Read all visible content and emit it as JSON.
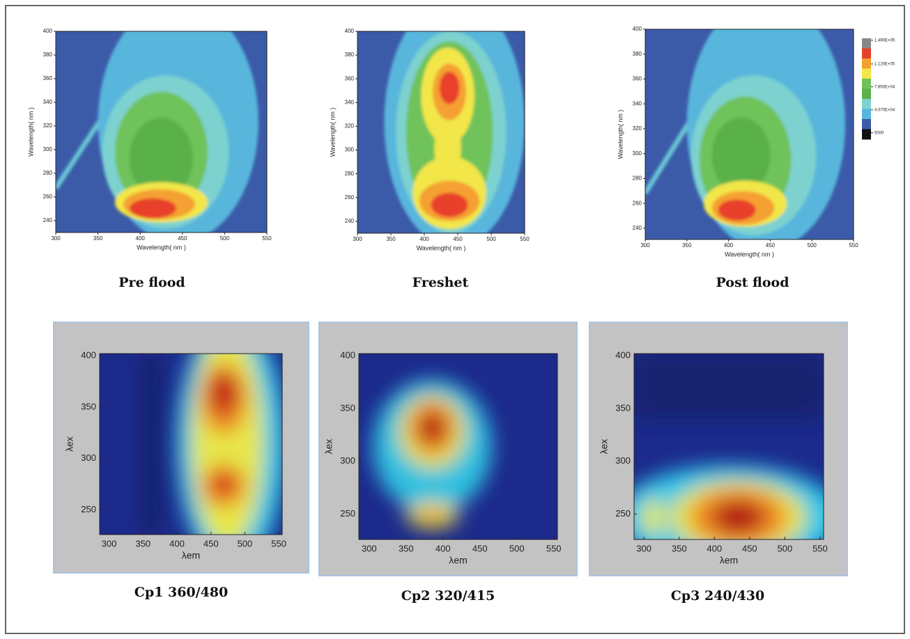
{
  "chart_data": [
    {
      "type": "contour",
      "title": "Pre flood",
      "x_label": "Wavelength( nm )",
      "y_label": "Wavelength( nm )",
      "xlim": [
        300,
        550
      ],
      "ylim": [
        230,
        400
      ],
      "xticks": [
        300,
        350,
        400,
        450,
        500,
        550
      ],
      "yticks": [
        240,
        260,
        280,
        300,
        320,
        340,
        360,
        380,
        400
      ]
    },
    {
      "type": "contour",
      "title": "Freshet",
      "x_label": "Wavelength( nm )",
      "y_label": "Wavelength( nm )",
      "xlim": [
        300,
        550
      ],
      "ylim": [
        230,
        400
      ],
      "xticks": [
        300,
        350,
        400,
        450,
        500,
        550
      ],
      "yticks": [
        240,
        260,
        280,
        300,
        320,
        340,
        360,
        380,
        400
      ]
    },
    {
      "type": "contour",
      "title": "Post flood",
      "x_label": "Wavelength( nm )",
      "y_label": "Wavelength( nm )",
      "xlim": [
        300,
        550
      ],
      "ylim": [
        231,
        400
      ],
      "xticks": [
        300,
        350,
        400,
        450,
        500,
        550
      ],
      "yticks": [
        240,
        260,
        280,
        300,
        320,
        340,
        360,
        380,
        400
      ],
      "colorbar": {
        "clim": [
          -5000,
          152000
        ],
        "ticks": [
          {
            "value": 149000,
            "label": "1.490E+05"
          },
          {
            "value": 112000,
            "label": "1.120E+05"
          },
          {
            "value": 76500,
            "label": "7.650E+04"
          },
          {
            "value": 40700,
            "label": "4.070E+04"
          },
          5000
        ]
      }
    },
    {
      "type": "heatmap",
      "title": "Cp1 360/480",
      "x_label": "λem",
      "y_label": "λex",
      "xlim": [
        286,
        555
      ],
      "ylim": [
        226,
        402
      ],
      "xticks": [
        300,
        350,
        400,
        450,
        500,
        550
      ],
      "yticks": [
        250,
        300,
        350,
        400
      ]
    },
    {
      "type": "heatmap",
      "title": "Cp2 320/415",
      "x_label": "λem",
      "y_label": "λex",
      "xlim": [
        286,
        555
      ],
      "ylim": [
        226,
        402
      ],
      "xticks": [
        300,
        350,
        400,
        450,
        500,
        550
      ],
      "yticks": [
        250,
        300,
        350,
        400
      ]
    },
    {
      "type": "heatmap",
      "title": "Cp3 240/430",
      "x_label": "λem",
      "y_label": "λex",
      "xlim": [
        286,
        555
      ],
      "ylim": [
        226,
        402
      ],
      "xticks": [
        300,
        350,
        400,
        450,
        500,
        550
      ],
      "yticks": [
        250,
        300,
        350,
        400
      ]
    }
  ]
}
